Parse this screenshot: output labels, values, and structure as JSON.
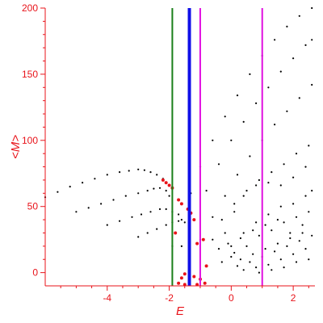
{
  "chart_data": {
    "type": "scatter",
    "title": "",
    "xlabel": "E",
    "ylabel": "<M>",
    "xlim": [
      -6.0,
      2.7
    ],
    "ylim": [
      -10,
      200
    ],
    "xticks": [
      -4,
      -2,
      0,
      2
    ],
    "yticks": [
      0,
      50,
      100,
      150,
      200
    ],
    "xtick_labels": [
      "-4",
      "-2",
      "0",
      "2"
    ],
    "ytick_labels": [
      "0",
      "50",
      "100",
      "150",
      "200"
    ],
    "grid": false,
    "legend": "none",
    "colors": {
      "axes": "#e8131a",
      "dots": "#000000",
      "highlight_dots": "#e8131a",
      "green_line": "#1a7f1a",
      "blue_line": "#1010e8",
      "magenta_line": "#e010e0"
    },
    "series": [
      {
        "points": [
          [
            -6.0,
            57
          ],
          [
            -5.6,
            61
          ],
          [
            -5.2,
            65
          ],
          [
            -4.8,
            68
          ],
          [
            -4.4,
            71
          ],
          [
            -4.0,
            74
          ],
          [
            -3.6,
            76
          ],
          [
            -3.3,
            77
          ],
          [
            -3.0,
            78
          ],
          [
            -2.8,
            77.5
          ],
          [
            -2.6,
            76
          ],
          [
            -2.4,
            74
          ],
          [
            -2.2,
            71
          ],
          [
            -2.1,
            68
          ]
        ],
        "color": "#000000"
      },
      {
        "points": [
          [
            -5.0,
            46
          ],
          [
            -4.6,
            49
          ],
          [
            -4.2,
            52
          ],
          [
            -3.8,
            55
          ],
          [
            -3.4,
            58
          ],
          [
            -3.0,
            60
          ],
          [
            -2.7,
            62
          ],
          [
            -2.5,
            63.5
          ],
          [
            -2.3,
            64
          ],
          [
            -2.1,
            62
          ],
          [
            -2.0,
            58
          ]
        ],
        "color": "#000000"
      },
      {
        "points": [
          [
            -4.0,
            36
          ],
          [
            -3.6,
            39
          ],
          [
            -3.2,
            42
          ],
          [
            -2.9,
            44
          ],
          [
            -2.6,
            46
          ],
          [
            -2.3,
            48
          ],
          [
            -2.1,
            48
          ],
          [
            -1.9,
            46
          ],
          [
            -1.7,
            44
          ]
        ],
        "color": "#000000"
      },
      {
        "points": [
          [
            -3.0,
            27
          ],
          [
            -2.7,
            30
          ],
          [
            -2.4,
            33
          ],
          [
            -2.1,
            36
          ],
          [
            -1.9,
            38
          ],
          [
            -1.7,
            39
          ],
          [
            -1.5,
            38
          ]
        ],
        "color": "#000000"
      },
      {
        "points": [
          [
            -1.9,
            20
          ],
          [
            -1.6,
            40
          ],
          [
            -1.3,
            60
          ],
          [
            -1.0,
            80
          ],
          [
            -0.6,
            100
          ],
          [
            -0.2,
            118
          ],
          [
            0.2,
            134
          ],
          [
            0.6,
            150
          ],
          [
            1.0,
            164
          ],
          [
            1.4,
            176
          ],
          [
            1.8,
            186
          ],
          [
            2.2,
            194
          ],
          [
            2.6,
            200
          ]
        ],
        "color": "#000000"
      },
      {
        "points": [
          [
            -1.6,
            20
          ],
          [
            -1.2,
            40
          ],
          [
            -0.8,
            62
          ],
          [
            -0.4,
            82
          ],
          [
            0.0,
            100
          ],
          [
            0.4,
            114
          ],
          [
            0.8,
            128
          ],
          [
            1.2,
            140
          ],
          [
            1.6,
            152
          ],
          [
            2.0,
            162
          ],
          [
            2.4,
            172
          ],
          [
            2.6,
            176
          ]
        ],
        "color": "#000000"
      },
      {
        "points": [
          [
            -1.0,
            25
          ],
          [
            -0.6,
            42
          ],
          [
            -0.2,
            58
          ],
          [
            0.2,
            74
          ],
          [
            0.6,
            88
          ],
          [
            1.0,
            100
          ],
          [
            1.4,
            112
          ],
          [
            1.8,
            122
          ],
          [
            2.2,
            132
          ],
          [
            2.6,
            142
          ]
        ],
        "color": "#000000"
      },
      {
        "points": [
          [
            -0.6,
            25
          ],
          [
            -0.3,
            40
          ],
          [
            0.1,
            52
          ],
          [
            0.5,
            62
          ],
          [
            0.9,
            70
          ],
          [
            1.3,
            76
          ],
          [
            1.7,
            82
          ],
          [
            2.1,
            90
          ],
          [
            2.5,
            96
          ]
        ],
        "color": "#000000"
      },
      {
        "points": [
          [
            -0.2,
            30
          ],
          [
            0.1,
            46
          ],
          [
            0.4,
            58
          ],
          [
            0.8,
            66
          ],
          [
            1.2,
            68
          ],
          [
            1.6,
            66
          ],
          [
            2.0,
            72
          ],
          [
            2.4,
            80
          ]
        ],
        "color": "#000000"
      },
      {
        "points": [
          [
            0.0,
            20
          ],
          [
            0.4,
            30
          ],
          [
            0.8,
            38
          ],
          [
            1.2,
            44
          ],
          [
            1.6,
            50
          ],
          [
            2.0,
            52
          ],
          [
            2.4,
            58
          ],
          [
            2.6,
            62
          ]
        ],
        "color": "#000000"
      },
      {
        "points": [
          [
            0.1,
            15
          ],
          [
            0.5,
            20
          ],
          [
            0.9,
            28
          ],
          [
            1.3,
            32
          ],
          [
            1.7,
            38
          ],
          [
            2.1,
            42
          ],
          [
            2.5,
            46
          ],
          [
            0.3,
            10
          ],
          [
            0.7,
            14
          ],
          [
            1.1,
            18
          ],
          [
            1.5,
            22
          ],
          [
            1.9,
            26
          ],
          [
            2.3,
            30
          ],
          [
            0.2,
            5
          ],
          [
            0.6,
            8
          ],
          [
            1.0,
            12
          ],
          [
            1.4,
            16
          ],
          [
            1.8,
            20
          ],
          [
            2.2,
            24
          ],
          [
            2.6,
            28
          ],
          [
            0.4,
            2
          ],
          [
            0.8,
            4
          ],
          [
            1.2,
            6
          ],
          [
            1.6,
            10
          ],
          [
            2.0,
            14
          ],
          [
            2.4,
            18
          ],
          [
            -0.4,
            18
          ],
          [
            -0.1,
            22
          ],
          [
            0.3,
            26
          ],
          [
            0.7,
            32
          ],
          [
            1.1,
            36
          ],
          [
            1.5,
            40
          ],
          [
            1.9,
            30
          ],
          [
            2.3,
            36
          ],
          [
            -0.3,
            8
          ],
          [
            0.0,
            12
          ],
          [
            0.9,
            0
          ],
          [
            1.3,
            2
          ],
          [
            1.7,
            4
          ],
          [
            2.1,
            8
          ],
          [
            2.5,
            10
          ]
        ],
        "color": "#000000"
      },
      {
        "points": [
          [
            -2.2,
            70
          ],
          [
            -2.1,
            68
          ],
          [
            -2.0,
            66
          ],
          [
            -1.9,
            64
          ],
          [
            -1.7,
            55
          ],
          [
            -1.6,
            52
          ],
          [
            -1.4,
            48
          ],
          [
            -1.3,
            45
          ],
          [
            -1.2,
            40
          ],
          [
            -1.8,
            30
          ],
          [
            -0.9,
            25
          ],
          [
            -1.1,
            22
          ],
          [
            -0.8,
            5
          ],
          [
            -1.5,
            -1
          ],
          [
            -1.2,
            -3
          ],
          [
            -1.0,
            -5
          ],
          [
            -1.35,
            -6
          ],
          [
            -1.6,
            -4
          ],
          [
            -0.85,
            -8
          ],
          [
            -1.1,
            -9
          ],
          [
            -1.5,
            -9
          ],
          [
            -1.7,
            -8
          ]
        ],
        "color": "#e8131a"
      }
    ],
    "vertical_lines": [
      {
        "x": -1.9,
        "color": "#1a7f1a"
      },
      {
        "x": -1.35,
        "color": "#1010e8"
      },
      {
        "x": -1.0,
        "color": "#e010e0"
      },
      {
        "x": 1.0,
        "color": "#e010e0"
      }
    ]
  }
}
